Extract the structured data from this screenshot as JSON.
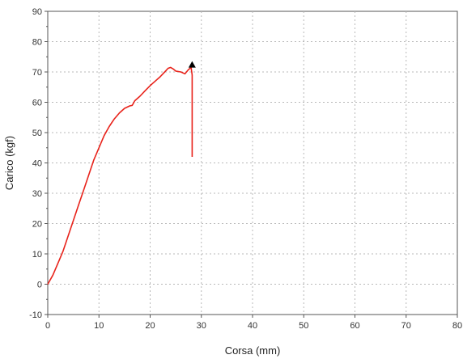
{
  "chart_data": {
    "type": "line",
    "xlabel": "Corsa (mm)",
    "ylabel": "Carico (kgf)",
    "xlim": [
      0,
      80
    ],
    "ylim": [
      -10,
      90
    ],
    "x_ticks": [
      0,
      10,
      20,
      30,
      40,
      50,
      60,
      70,
      80
    ],
    "y_ticks": [
      -10,
      0,
      10,
      20,
      30,
      40,
      50,
      60,
      70,
      80,
      90
    ],
    "grid": true,
    "series": [
      {
        "color": "#e8231b",
        "points": [
          [
            0,
            0
          ],
          [
            1,
            3
          ],
          [
            2,
            7
          ],
          [
            3,
            11
          ],
          [
            4,
            16
          ],
          [
            5,
            21
          ],
          [
            6,
            26
          ],
          [
            7,
            31
          ],
          [
            8,
            36
          ],
          [
            9,
            41
          ],
          [
            10,
            45
          ],
          [
            11,
            49
          ],
          [
            12,
            52
          ],
          [
            13,
            54.5
          ],
          [
            14,
            56.5
          ],
          [
            15,
            58
          ],
          [
            16,
            58.8
          ],
          [
            16.5,
            59
          ],
          [
            17,
            60.5
          ],
          [
            18,
            62
          ],
          [
            19,
            63.8
          ],
          [
            20,
            65.5
          ],
          [
            21,
            67
          ],
          [
            22,
            68.5
          ],
          [
            23,
            70.3
          ],
          [
            23.5,
            71.2
          ],
          [
            24,
            71.5
          ],
          [
            24.5,
            71
          ],
          [
            25,
            70.3
          ],
          [
            26,
            70
          ],
          [
            26.8,
            69.4
          ],
          [
            27.5,
            70.8
          ],
          [
            28,
            71.5
          ],
          [
            28.2,
            69
          ],
          [
            28.2,
            60
          ],
          [
            28.2,
            50
          ],
          [
            28.2,
            42
          ]
        ]
      }
    ],
    "end_marker": {
      "shape": "triangle",
      "x": 28.2,
      "y": 72.5,
      "color": "#000000"
    }
  }
}
